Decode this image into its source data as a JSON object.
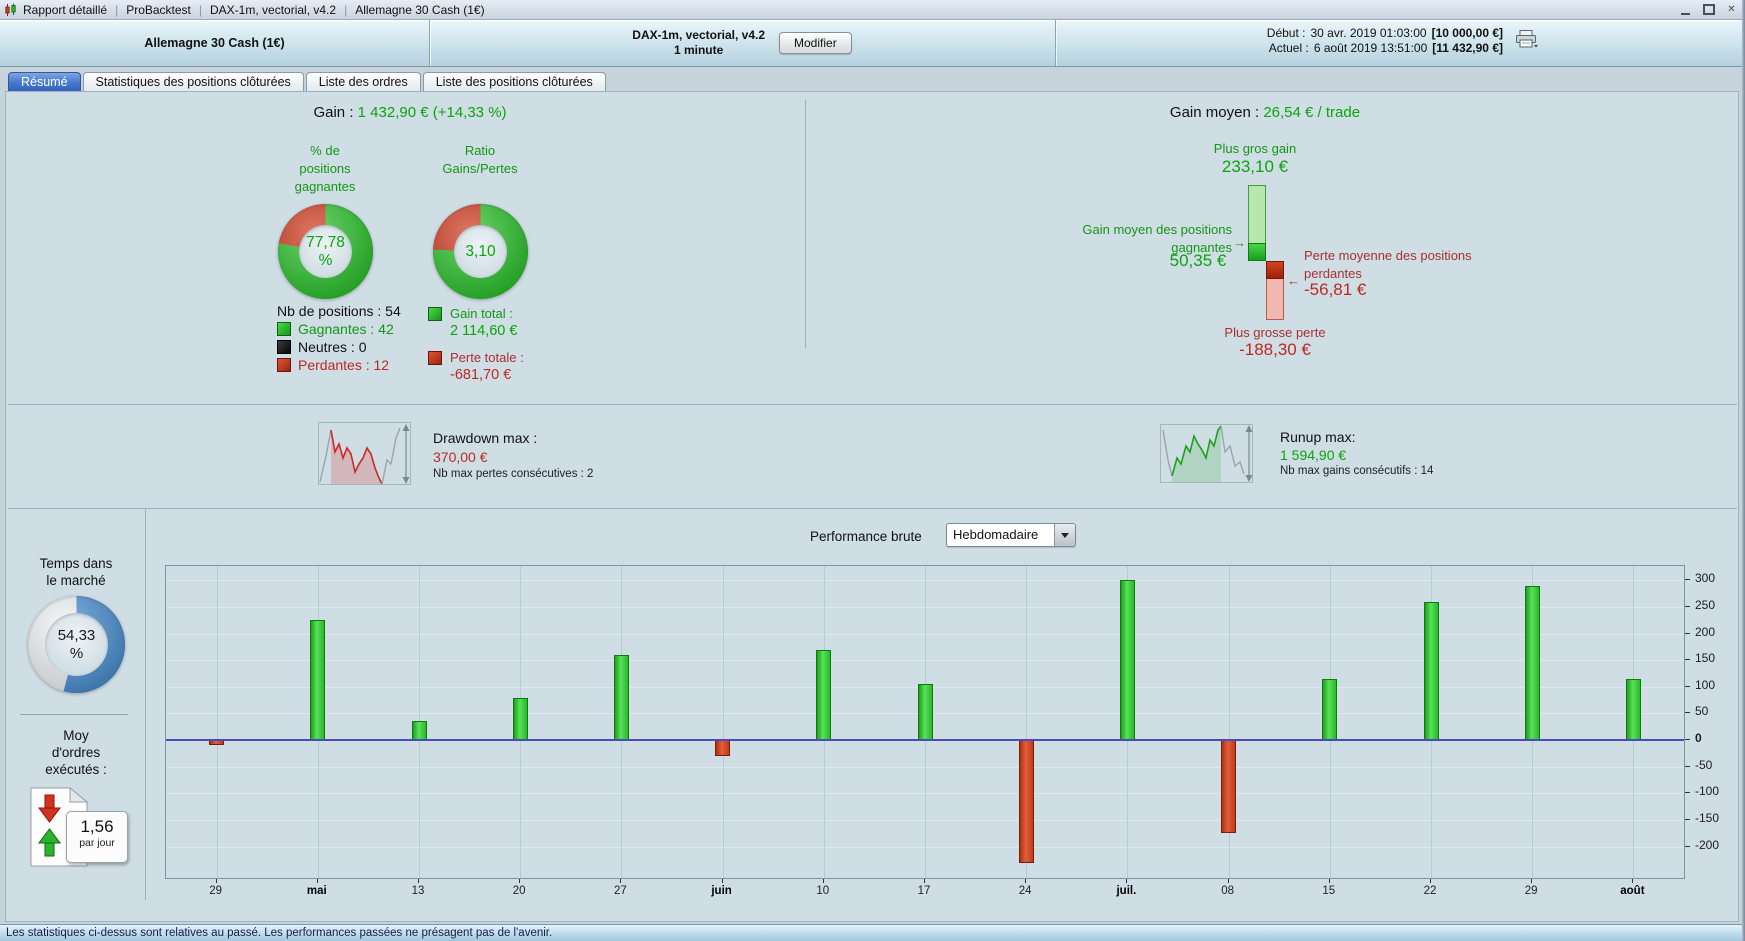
{
  "window": {
    "title_parts": [
      "Rapport détaillé",
      "ProBacktest",
      "DAX-1m, vectorial, v4.2",
      "Allemagne 30 Cash (1€)"
    ],
    "separator": "|",
    "close_glyph": "✕"
  },
  "header": {
    "instrument": "Allemagne 30 Cash (1€)",
    "system": "DAX-1m, vectorial, v4.2\n1 minute",
    "modify_button": "Modifier",
    "rows": [
      {
        "label": "Début :",
        "datetime": "30 avr. 2019 01:03:00",
        "amount": "[10 000,00 €]"
      },
      {
        "label": "Actuel :",
        "datetime": "6 août 2019 13:51:00",
        "amount": "[11 432,90 €]"
      }
    ]
  },
  "tabs": [
    {
      "label": "Résumé"
    },
    {
      "label": "Statistiques des positions clôturées"
    },
    {
      "label": "Liste des ordres"
    },
    {
      "label": "Liste des positions clôturées"
    }
  ],
  "summary": {
    "gain_label": "Gain :",
    "gain_value": "1 432,90 € (+14,33 %)",
    "win_pct_label": "% de\npositions\ngagnantes",
    "win_pct_text": "77,78\n%",
    "win_pct": 77.78,
    "ratio_label": "Ratio\nGains/Pertes",
    "ratio_text": "3,10",
    "ratio": 3.1,
    "nb_positions": "Nb de positions : 54",
    "legend": {
      "gagnantes": "Gagnantes : 42",
      "neutres": "Neutres : 0",
      "perdantes": "Perdantes : 12"
    },
    "gain_total_label": "Gain total :",
    "gain_total_value": "2 114,60 €",
    "perte_totale_label": "Perte totale :",
    "perte_totale_value": "-681,70 €"
  },
  "gain_moyen": {
    "title_label": "Gain moyen :",
    "title_value": "26,54 € / trade",
    "plus_gros_gain_label": "Plus gros gain",
    "plus_gros_gain_value": "233,10 €",
    "avg_win_label": "Gain moyen des positions\ngagnantes",
    "avg_win_value": "50,35 €",
    "avg_loss_label": "Perte moyenne des positions\nperdantes",
    "avg_loss_value": "-56,81 €",
    "plus_grosse_perte_label": "Plus grosse perte",
    "plus_grosse_perte_value": "-188,30 €",
    "arrow_right": "→",
    "arrow_left": "←"
  },
  "drawdown": {
    "label": "Drawdown max :",
    "value": "370,00 €",
    "note": "Nb max pertes consécutives : 2"
  },
  "runup": {
    "label": "Runup max:",
    "value": "1 594,90 €",
    "note": "Nb max gains consécutifs : 14"
  },
  "performance": {
    "title": "Performance brute",
    "period": "Hebdomadaire"
  },
  "sidebar": {
    "time_label": "Temps dans\nle marché",
    "time_text": "54,33\n%",
    "time_pct": 54.33,
    "orders_label": "Moy\nd'ordres\nexécutés :",
    "orders_value": "1,56",
    "orders_unit": "par jour"
  },
  "chart_data": {
    "type": "bar",
    "title": "Performance brute",
    "period": "Hebdomadaire",
    "categories": [
      "29",
      "mai",
      "13",
      "20",
      "27",
      "juin",
      "10",
      "17",
      "24",
      "juil.",
      "08",
      "15",
      "22",
      "29",
      "août"
    ],
    "bold_categories": [
      "mai",
      "juin",
      "juil.",
      "août"
    ],
    "values": [
      -10,
      225,
      35,
      80,
      160,
      -30,
      170,
      105,
      -230,
      300,
      -175,
      115,
      260,
      290,
      115
    ],
    "unit": "€",
    "y_ticks": [
      300,
      250,
      200,
      150,
      100,
      50,
      0,
      -50,
      -100,
      -150,
      -200
    ],
    "ylim": [
      -259,
      327
    ],
    "grid": true,
    "axis_side": "right",
    "positive_color": "#2ec62e",
    "negative_color": "#cc3a22",
    "zero_line_color": "#4a4ab8"
  },
  "status_bar": "Les statistiques ci-dessus sont relatives au passé. Les performances passées ne présagent pas de l'avenir."
}
